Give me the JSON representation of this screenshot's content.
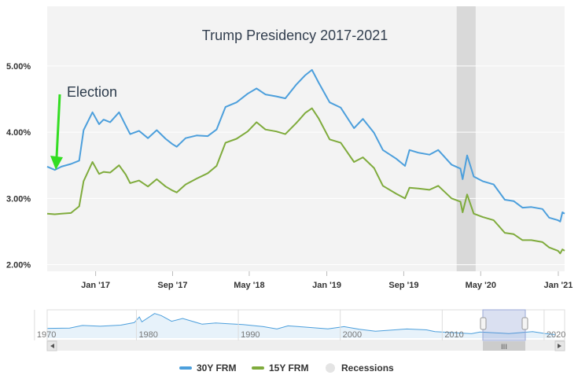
{
  "chart_data": {
    "type": "line",
    "title": "Trump Presidency 2017-2021",
    "annotation": "Election",
    "y_ticks": [
      "2.00%",
      "3.00%",
      "4.00%",
      "5.00%"
    ],
    "ylim": [
      1.9,
      5.9
    ],
    "x_ticks": [
      "Jan '17",
      "Sep '17",
      "May '18",
      "Jan '19",
      "Sep '19",
      "May '20",
      "Jan '21"
    ],
    "x_range": [
      "2016-08-01",
      "2021-01-21"
    ],
    "grid": "horizontal",
    "legend_position": "bottom",
    "series": [
      {
        "name": "30Y FRM",
        "color": "#4c9fdc",
        "points": [
          [
            "2016-08-01",
            3.48
          ],
          [
            "2016-08-25",
            3.43
          ],
          [
            "2016-09-15",
            3.48
          ],
          [
            "2016-10-15",
            3.52
          ],
          [
            "2016-11-10",
            3.57
          ],
          [
            "2016-11-24",
            4.03
          ],
          [
            "2016-12-22",
            4.3
          ],
          [
            "2017-01-12",
            4.12
          ],
          [
            "2017-01-26",
            4.19
          ],
          [
            "2017-02-16",
            4.15
          ],
          [
            "2017-03-16",
            4.3
          ],
          [
            "2017-04-06",
            4.1
          ],
          [
            "2017-04-20",
            3.97
          ],
          [
            "2017-05-18",
            4.02
          ],
          [
            "2017-06-15",
            3.91
          ],
          [
            "2017-07-13",
            4.03
          ],
          [
            "2017-08-10",
            3.9
          ],
          [
            "2017-08-31",
            3.82
          ],
          [
            "2017-09-14",
            3.78
          ],
          [
            "2017-10-12",
            3.91
          ],
          [
            "2017-11-16",
            3.95
          ],
          [
            "2017-12-21",
            3.94
          ],
          [
            "2018-01-18",
            4.04
          ],
          [
            "2018-02-15",
            4.38
          ],
          [
            "2018-03-22",
            4.45
          ],
          [
            "2018-04-26",
            4.58
          ],
          [
            "2018-05-24",
            4.66
          ],
          [
            "2018-06-21",
            4.57
          ],
          [
            "2018-07-26",
            4.54
          ],
          [
            "2018-08-23",
            4.51
          ],
          [
            "2018-09-27",
            4.72
          ],
          [
            "2018-10-25",
            4.86
          ],
          [
            "2018-11-15",
            4.94
          ],
          [
            "2018-12-06",
            4.75
          ],
          [
            "2019-01-10",
            4.45
          ],
          [
            "2019-02-14",
            4.37
          ],
          [
            "2019-03-28",
            4.06
          ],
          [
            "2019-04-25",
            4.2
          ],
          [
            "2019-05-30",
            3.99
          ],
          [
            "2019-06-27",
            3.73
          ],
          [
            "2019-08-08",
            3.6
          ],
          [
            "2019-09-05",
            3.49
          ],
          [
            "2019-09-19",
            3.73
          ],
          [
            "2019-10-17",
            3.69
          ],
          [
            "2019-11-21",
            3.66
          ],
          [
            "2019-12-19",
            3.73
          ],
          [
            "2020-01-30",
            3.51
          ],
          [
            "2020-02-27",
            3.45
          ],
          [
            "2020-03-05",
            3.29
          ],
          [
            "2020-03-19",
            3.65
          ],
          [
            "2020-04-09",
            3.33
          ],
          [
            "2020-05-07",
            3.26
          ],
          [
            "2020-06-11",
            3.21
          ],
          [
            "2020-07-16",
            2.98
          ],
          [
            "2020-08-13",
            2.96
          ],
          [
            "2020-09-10",
            2.86
          ],
          [
            "2020-10-08",
            2.87
          ],
          [
            "2020-11-12",
            2.84
          ],
          [
            "2020-12-03",
            2.71
          ],
          [
            "2020-12-31",
            2.67
          ],
          [
            "2021-01-07",
            2.65
          ],
          [
            "2021-01-14",
            2.79
          ],
          [
            "2021-01-21",
            2.77
          ]
        ]
      },
      {
        "name": "15Y FRM",
        "color": "#7fab3c",
        "points": [
          [
            "2016-08-01",
            2.77
          ],
          [
            "2016-08-25",
            2.76
          ],
          [
            "2016-09-15",
            2.77
          ],
          [
            "2016-10-15",
            2.78
          ],
          [
            "2016-11-10",
            2.88
          ],
          [
            "2016-11-24",
            3.26
          ],
          [
            "2016-12-22",
            3.55
          ],
          [
            "2017-01-12",
            3.37
          ],
          [
            "2017-01-26",
            3.4
          ],
          [
            "2017-02-16",
            3.39
          ],
          [
            "2017-03-16",
            3.5
          ],
          [
            "2017-04-06",
            3.36
          ],
          [
            "2017-04-20",
            3.23
          ],
          [
            "2017-05-18",
            3.27
          ],
          [
            "2017-06-15",
            3.18
          ],
          [
            "2017-07-13",
            3.29
          ],
          [
            "2017-08-10",
            3.18
          ],
          [
            "2017-08-31",
            3.12
          ],
          [
            "2017-09-14",
            3.09
          ],
          [
            "2017-10-12",
            3.21
          ],
          [
            "2017-11-16",
            3.3
          ],
          [
            "2017-12-21",
            3.38
          ],
          [
            "2018-01-18",
            3.49
          ],
          [
            "2018-02-15",
            3.84
          ],
          [
            "2018-03-22",
            3.9
          ],
          [
            "2018-04-26",
            4.01
          ],
          [
            "2018-05-24",
            4.15
          ],
          [
            "2018-06-21",
            4.04
          ],
          [
            "2018-07-26",
            4.01
          ],
          [
            "2018-08-23",
            3.97
          ],
          [
            "2018-09-27",
            4.14
          ],
          [
            "2018-10-25",
            4.29
          ],
          [
            "2018-11-15",
            4.36
          ],
          [
            "2018-12-06",
            4.21
          ],
          [
            "2019-01-10",
            3.89
          ],
          [
            "2019-02-14",
            3.84
          ],
          [
            "2019-03-28",
            3.55
          ],
          [
            "2019-04-25",
            3.62
          ],
          [
            "2019-05-30",
            3.46
          ],
          [
            "2019-06-27",
            3.19
          ],
          [
            "2019-08-08",
            3.07
          ],
          [
            "2019-09-05",
            3.0
          ],
          [
            "2019-09-19",
            3.16
          ],
          [
            "2019-10-17",
            3.15
          ],
          [
            "2019-11-21",
            3.13
          ],
          [
            "2019-12-19",
            3.19
          ],
          [
            "2020-01-30",
            3.0
          ],
          [
            "2020-02-27",
            2.95
          ],
          [
            "2020-03-05",
            2.79
          ],
          [
            "2020-03-19",
            3.06
          ],
          [
            "2020-04-09",
            2.77
          ],
          [
            "2020-05-07",
            2.72
          ],
          [
            "2020-06-11",
            2.67
          ],
          [
            "2020-07-16",
            2.48
          ],
          [
            "2020-08-13",
            2.46
          ],
          [
            "2020-09-10",
            2.37
          ],
          [
            "2020-10-08",
            2.37
          ],
          [
            "2020-11-12",
            2.34
          ],
          [
            "2020-12-03",
            2.26
          ],
          [
            "2020-12-31",
            2.21
          ],
          [
            "2021-01-07",
            2.17
          ],
          [
            "2021-01-14",
            2.23
          ],
          [
            "2021-01-21",
            2.21
          ]
        ]
      }
    ],
    "recessions": [
      [
        "2020-02-15",
        "2020-04-15"
      ]
    ],
    "recession_color": "#d9d9d9",
    "navigator": {
      "labels": [
        "1970",
        "1980",
        "1990",
        "2000",
        "2010",
        "2020"
      ],
      "range": [
        "1971-04-01",
        "2021-02-01"
      ],
      "selected": [
        "2016-08-01",
        "2021-01-21"
      ],
      "values": [
        [
          "1971-04",
          7.3
        ],
        [
          "1973-06",
          7.5
        ],
        [
          "1974-09",
          9.5
        ],
        [
          "1976-06",
          8.9
        ],
        [
          "1978-06",
          9.7
        ],
        [
          "1979-10",
          11.6
        ],
        [
          "1980-04",
          15.8
        ],
        [
          "1980-07",
          12.2
        ],
        [
          "1981-10",
          18.4
        ],
        [
          "1982-06",
          16.8
        ],
        [
          "1983-06",
          12.6
        ],
        [
          "1984-07",
          14.7
        ],
        [
          "1986-06",
          10.4
        ],
        [
          "1987-10",
          11.3
        ],
        [
          "1989-01",
          10.7
        ],
        [
          "1990-06",
          10.2
        ],
        [
          "1992-06",
          8.6
        ],
        [
          "1993-10",
          6.8
        ],
        [
          "1994-11",
          9.2
        ],
        [
          "1996-06",
          8.3
        ],
        [
          "1998-10",
          6.9
        ],
        [
          "2000-05",
          8.6
        ],
        [
          "2001-11",
          6.6
        ],
        [
          "2003-06",
          5.2
        ],
        [
          "2006-07",
          6.8
        ],
        [
          "2008-06",
          6.2
        ],
        [
          "2009-04",
          4.8
        ],
        [
          "2010-11",
          4.2
        ],
        [
          "2012-11",
          3.3
        ],
        [
          "2013-09",
          4.6
        ],
        [
          "2016-07",
          3.4
        ],
        [
          "2018-11",
          4.9
        ],
        [
          "2020-03",
          3.3
        ],
        [
          "2021-01",
          2.7
        ]
      ]
    },
    "legend": [
      {
        "label": "30Y FRM",
        "type": "line",
        "color": "#4c9fdc"
      },
      {
        "label": "15Y FRM",
        "type": "line",
        "color": "#7fab3c"
      },
      {
        "label": "Recessions",
        "type": "dot",
        "color": "#e4e4e4"
      }
    ]
  }
}
